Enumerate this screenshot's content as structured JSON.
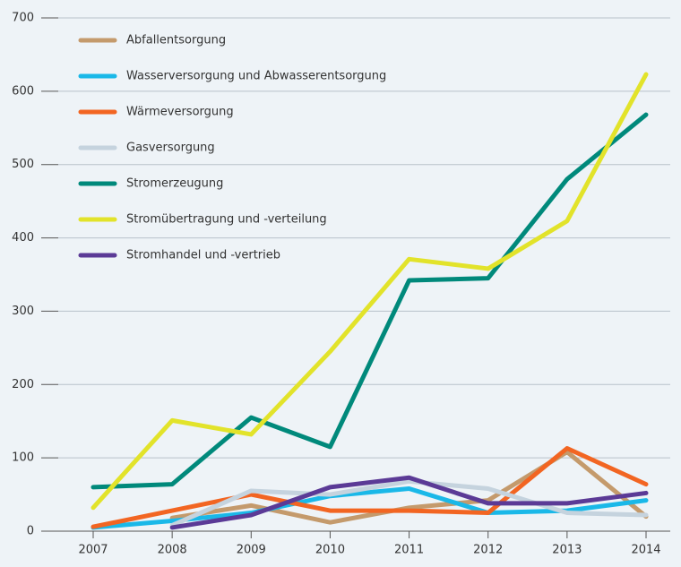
{
  "chart_data": {
    "type": "line",
    "x": [
      2007,
      2008,
      2009,
      2010,
      2011,
      2012,
      2013,
      2014
    ],
    "xlim": [
      2007,
      2014
    ],
    "xticks": [
      2007,
      2008,
      2009,
      2010,
      2011,
      2012,
      2013,
      2014
    ],
    "ylim": [
      0,
      700
    ],
    "yticks": [
      0,
      100,
      200,
      300,
      400,
      500,
      600,
      700
    ],
    "grid": true,
    "legend": "top-left",
    "series": [
      {
        "name": "Abfallentsorgung",
        "color": "#c49a6c",
        "values": [
          null,
          18,
          35,
          12,
          32,
          42,
          108,
          20
        ]
      },
      {
        "name": "Wasserversorgung und Abwasserentsorgung",
        "color": "#1ab8e8",
        "values": [
          5,
          14,
          25,
          48,
          58,
          25,
          28,
          42
        ]
      },
      {
        "name": "Wärmeversorgung",
        "color": "#f26522",
        "values": [
          6,
          28,
          50,
          28,
          28,
          25,
          113,
          64
        ]
      },
      {
        "name": "Gasversorgung",
        "color": "#c5d3de",
        "values": [
          null,
          8,
          55,
          50,
          68,
          58,
          25,
          22
        ]
      },
      {
        "name": "Stromerzeugung",
        "color": "#00897b",
        "values": [
          60,
          64,
          155,
          115,
          342,
          345,
          480,
          568
        ]
      },
      {
        "name": "Stromübertragung und -verteilung",
        "color": "#e2e32a",
        "values": [
          32,
          151,
          132,
          245,
          371,
          358,
          423,
          623
        ]
      },
      {
        "name": "Stromhandel und -vertrieb",
        "color": "#5b3a96",
        "values": [
          null,
          5,
          22,
          60,
          73,
          38,
          38,
          52
        ]
      }
    ]
  }
}
